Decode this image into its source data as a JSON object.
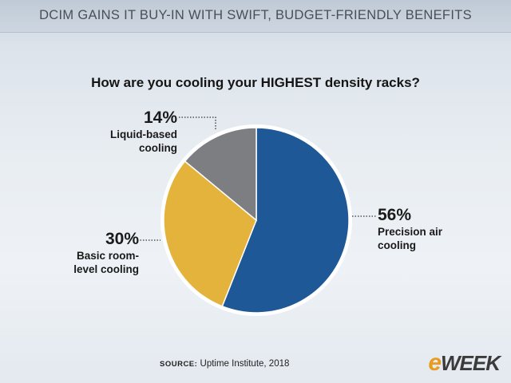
{
  "header": {
    "title": "DCIM GAINS IT BUY-IN WITH SWIFT, BUDGET-FRIENDLY BENEFITS"
  },
  "chart_data": {
    "type": "pie",
    "title": "How are you cooling your HIGHEST density racks?",
    "slices": [
      {
        "label": "Precision air cooling",
        "value": 56,
        "value_label": "56%",
        "color": "#1f5896"
      },
      {
        "label": "Basic room-level cooling",
        "value": 30,
        "value_label": "30%",
        "color": "#e4b33b"
      },
      {
        "label": "Liquid-based cooling",
        "value": 14,
        "value_label": "14%",
        "color": "#7c7e82"
      }
    ],
    "display_lines": {
      "precision": "Precision air\ncooling",
      "basic": "Basic room-\nlevel cooling",
      "liquid": "Liquid-based\ncooling"
    }
  },
  "source": {
    "key": "SOURCE:",
    "value": "Uptime Institute, 2018"
  },
  "logo": {
    "e": "e",
    "rest": "WEEK"
  }
}
